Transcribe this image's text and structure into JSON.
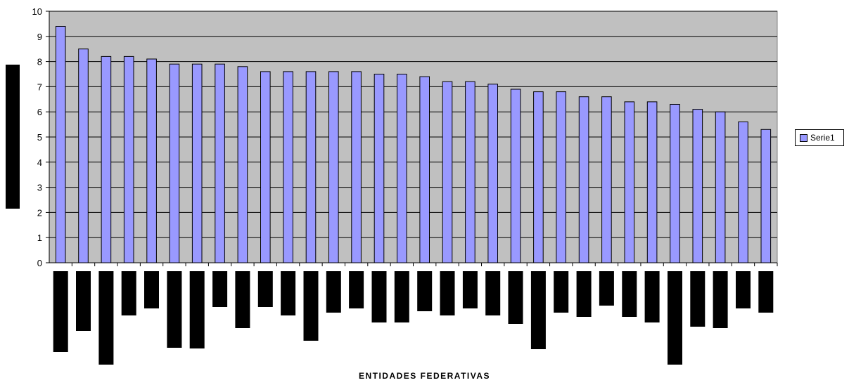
{
  "chart_data": {
    "type": "bar",
    "title": "",
    "xlabel": "ENTIDADES FEDERATIVAS",
    "ylabel": "",
    "ylim": [
      0,
      10
    ],
    "yticks": [
      0,
      1,
      2,
      3,
      4,
      5,
      6,
      7,
      8,
      9,
      10
    ],
    "grid": true,
    "legend_position": "right",
    "categories": [
      "",
      "",
      "",
      "",
      "",
      "",
      "",
      "",
      "",
      "",
      "",
      "",
      "",
      "",
      "",
      "",
      "",
      "",
      "",
      "",
      "",
      "",
      "",
      "",
      "",
      "",
      "",
      "",
      "",
      "",
      "",
      ""
    ],
    "series": [
      {
        "name": "Serie1",
        "values": [
          9.4,
          8.5,
          8.2,
          8.2,
          8.1,
          7.9,
          7.9,
          7.9,
          7.8,
          7.6,
          7.6,
          7.6,
          7.6,
          7.6,
          7.5,
          7.5,
          7.4,
          7.2,
          7.2,
          7.1,
          6.9,
          6.8,
          6.8,
          6.6,
          6.6,
          6.4,
          6.4,
          6.3,
          6.1,
          6.0,
          5.6,
          5.3
        ]
      }
    ],
    "colors": {
      "bar_fill": "#9999ff",
      "plot_background": "#c0c0c0",
      "redaction": "#000000"
    }
  }
}
